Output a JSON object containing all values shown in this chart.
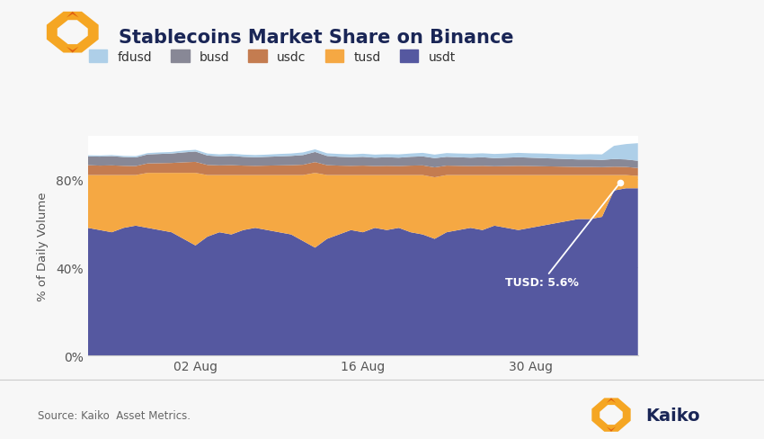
{
  "title": "Stablecoins Market Share on Binance",
  "ylabel": "% of Daily Volume",
  "source_text": "Source: Kaiko  Asset Metrics.",
  "annotation_text": "TUSD: 5.6%",
  "legend_labels": [
    "fdusd",
    "busd",
    "usdc",
    "tusd",
    "usdt"
  ],
  "colors": {
    "fdusd": "#aecfe8",
    "busd": "#888896",
    "usdc": "#c47c50",
    "tusd": "#f5a843",
    "usdt": "#5558a0"
  },
  "background_color": "#f7f7f7",
  "plot_background": "#ffffff",
  "n_points": 47,
  "yticks": [
    0,
    40,
    80
  ],
  "ytick_labels": [
    "0%",
    "40%",
    "80%"
  ],
  "xtick_positions": [
    9,
    23,
    37
  ],
  "xtick_labels": [
    "02 Aug",
    "16 Aug",
    "30 Aug"
  ],
  "title_color": "#1a2656",
  "tick_color": "#555555"
}
